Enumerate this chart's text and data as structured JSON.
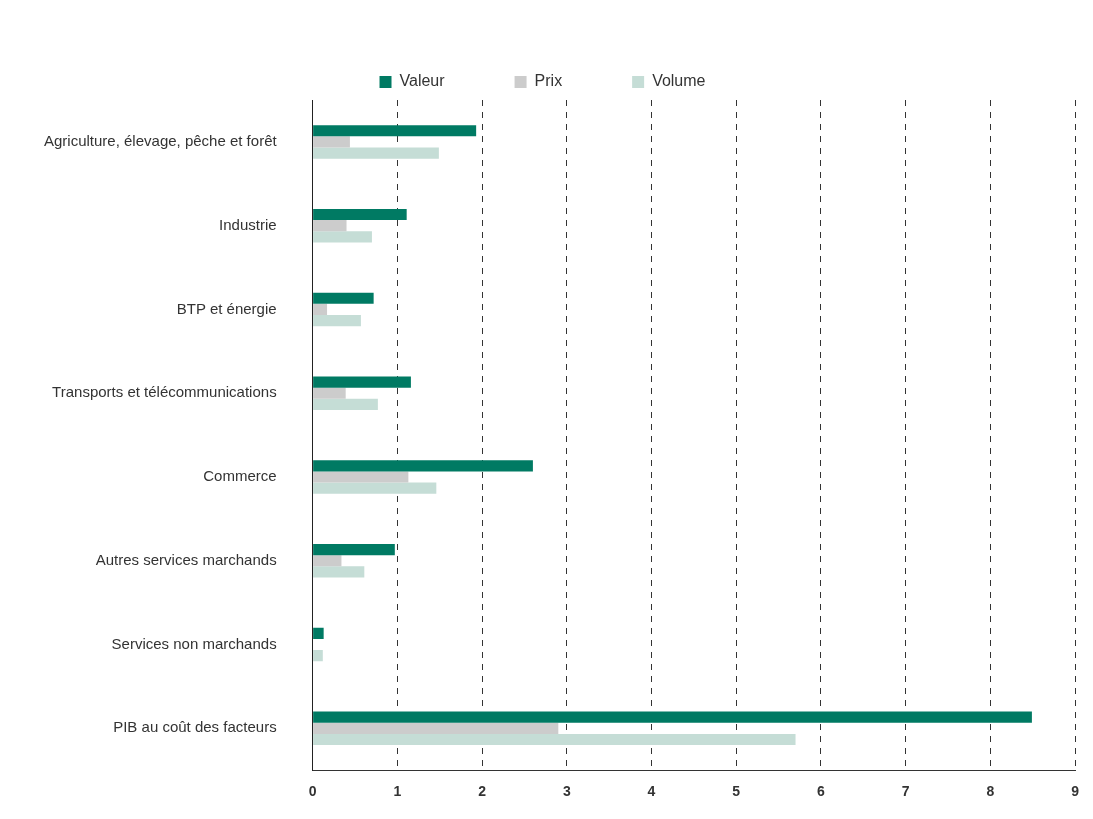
{
  "chart_data": {
    "type": "bar",
    "orientation": "horizontal",
    "categories": [
      "Agriculture, élevage, pêche et forêt",
      "Industrie",
      "BTP et énergie",
      "Transports et télécommunications",
      "Commerce",
      "Autres services marchands",
      "Services non marchands",
      "PIB au coût des facteurs"
    ],
    "series": [
      {
        "name": "Valeur",
        "color": "#007a63",
        "values": [
          1.93,
          1.11,
          0.72,
          1.16,
          2.6,
          0.97,
          0.13,
          8.49
        ]
      },
      {
        "name": "Prix",
        "color": "#cccccc",
        "values": [
          0.44,
          0.4,
          0.17,
          0.39,
          1.13,
          0.34,
          0,
          2.9
        ]
      },
      {
        "name": "Volume",
        "color": "#c5ddd6",
        "values": [
          1.49,
          0.7,
          0.57,
          0.77,
          1.46,
          0.61,
          0.12,
          5.7
        ]
      }
    ],
    "xlim": [
      0,
      9
    ],
    "xticks": [
      0,
      1,
      2,
      3,
      4,
      5,
      6,
      7,
      8,
      9
    ],
    "grid": "x",
    "legend": "top"
  }
}
